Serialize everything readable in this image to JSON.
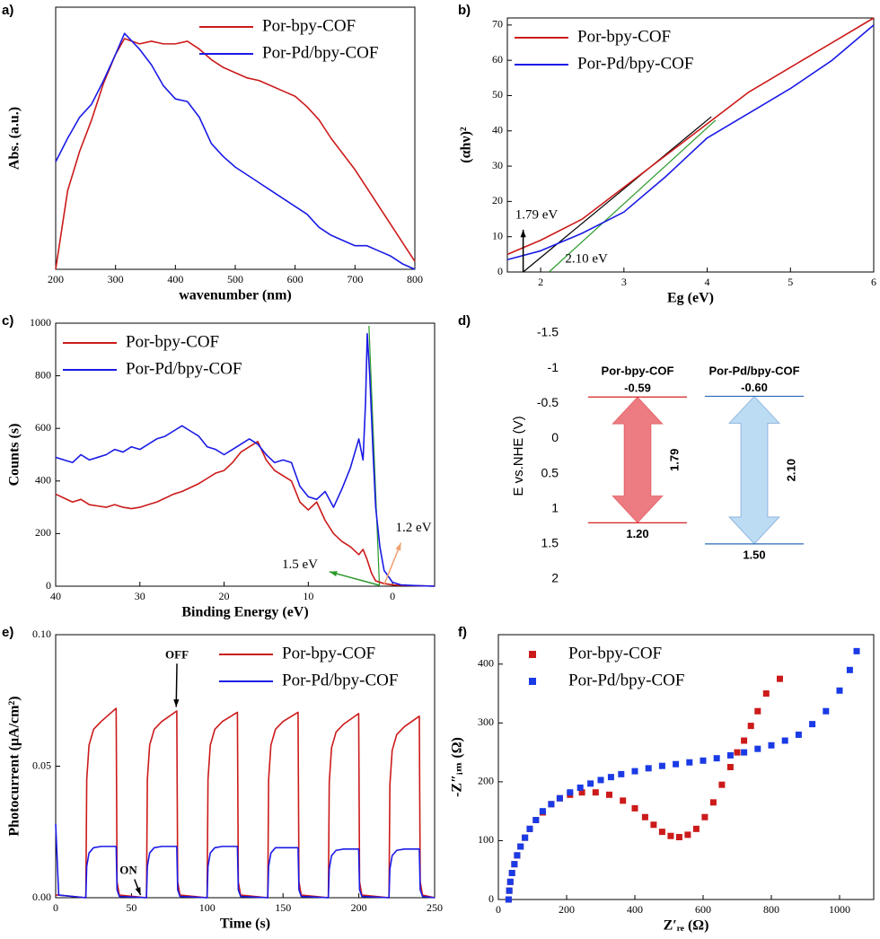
{
  "chart_data": [
    {
      "type": "line",
      "label": "a)",
      "xlabel": "wavenumber (nm)",
      "ylabel": "Abs. (a.u.)",
      "x": [
        200,
        220,
        240,
        260,
        280,
        300,
        315,
        340,
        360,
        380,
        400,
        420,
        440,
        460,
        480,
        500,
        520,
        540,
        560,
        580,
        600,
        620,
        640,
        660,
        680,
        700,
        720,
        740,
        760,
        780,
        800
      ],
      "series": [
        {
          "name": "Por-bpy-COF",
          "color": "#cc1a1a",
          "values": [
            0.0,
            0.3,
            0.45,
            0.57,
            0.71,
            0.82,
            0.88,
            0.86,
            0.87,
            0.86,
            0.86,
            0.87,
            0.84,
            0.8,
            0.77,
            0.75,
            0.73,
            0.72,
            0.7,
            0.68,
            0.66,
            0.62,
            0.57,
            0.5,
            0.44,
            0.38,
            0.31,
            0.24,
            0.17,
            0.1,
            0.03
          ]
        },
        {
          "name": "Por-Pd/bpy-COF",
          "color": "#1a1ae6",
          "values": [
            0.41,
            0.5,
            0.58,
            0.63,
            0.72,
            0.82,
            0.9,
            0.84,
            0.78,
            0.7,
            0.65,
            0.64,
            0.58,
            0.48,
            0.43,
            0.39,
            0.36,
            0.33,
            0.3,
            0.27,
            0.24,
            0.21,
            0.16,
            0.13,
            0.11,
            0.09,
            0.09,
            0.07,
            0.05,
            0.02,
            0.0
          ]
        }
      ],
      "xlim": [
        200,
        800
      ],
      "xticks": [
        200,
        300,
        400,
        500,
        600,
        700,
        800
      ],
      "ylim": [
        0,
        1
      ],
      "legend": "upper right"
    },
    {
      "type": "line",
      "label": "b)",
      "xlabel": "Eg (eV)",
      "ylabel": "(αhν)²",
      "x": [
        1.6,
        2,
        2.5,
        3,
        3.5,
        4,
        4.5,
        5,
        5.5,
        6
      ],
      "series": [
        {
          "name": "Por-bpy-COF",
          "color": "#cc1a1a",
          "values": [
            5,
            9,
            15,
            24,
            33,
            42,
            51,
            58,
            65,
            72
          ]
        },
        {
          "name": "Por-Pd/bpy-COF",
          "color": "#1a1ae6",
          "values": [
            3.5,
            6,
            11,
            17,
            27,
            38,
            45,
            52,
            60,
            70
          ]
        }
      ],
      "tangents": [
        {
          "color": "#000000",
          "x": [
            1.79,
            4.05
          ],
          "y": [
            0,
            44
          ]
        },
        {
          "color": "#2a9a2a",
          "x": [
            2.1,
            4.1
          ],
          "y": [
            0,
            43
          ]
        }
      ],
      "annotations": [
        {
          "text": "1.79 eV",
          "x": 1.95,
          "y": 16,
          "arrow": [
            1.79,
            0,
            1.79,
            12
          ],
          "arrow_color": "#000000"
        },
        {
          "text": "2.10 eV",
          "x": 2.55,
          "y": 3.5
        }
      ],
      "xlim": [
        1.6,
        6
      ],
      "xticks": [
        2,
        3,
        4,
        5,
        6
      ],
      "ylim": [
        0,
        72
      ],
      "yticks": [
        0,
        10,
        20,
        30,
        40,
        50,
        60,
        70
      ],
      "legend": "upper left"
    },
    {
      "type": "line",
      "label": "c)",
      "xlabel": "Binding Energy (eV)",
      "ylabel": "Counts (s)",
      "series": [
        {
          "name": "Por-bpy-COF",
          "color": "#cc1a1a",
          "x": [
            40,
            39,
            38,
            37,
            36,
            35,
            34,
            33,
            32,
            31,
            30,
            29,
            28,
            27,
            26,
            25,
            24,
            23,
            22,
            21,
            20,
            19,
            18,
            17,
            16,
            15,
            14,
            13,
            12,
            11,
            10,
            9,
            8,
            7,
            6,
            5,
            4,
            3.5,
            3,
            2.5,
            2,
            1,
            0,
            -1,
            -3,
            -5
          ],
          "values": [
            350,
            335,
            320,
            330,
            310,
            305,
            300,
            310,
            300,
            295,
            300,
            310,
            320,
            335,
            350,
            360,
            375,
            390,
            410,
            430,
            440,
            470,
            510,
            530,
            550,
            480,
            440,
            420,
            400,
            320,
            290,
            320,
            250,
            200,
            170,
            150,
            120,
            140,
            100,
            50,
            20,
            10,
            5,
            3,
            2,
            0
          ]
        },
        {
          "name": "Por-Pd/bpy-COF",
          "color": "#1a1ae6",
          "x": [
            40,
            39,
            38,
            37,
            36,
            35,
            34,
            33,
            32,
            31,
            30,
            29,
            28,
            27,
            26,
            25,
            24,
            23,
            22,
            21,
            20,
            19,
            18,
            17,
            16,
            15,
            14,
            13,
            12,
            11,
            10,
            9,
            8,
            7,
            6,
            5,
            4,
            3.5,
            3.2,
            3,
            2.7,
            2.3,
            2,
            1.5,
            1,
            0,
            -1,
            -3,
            -5
          ],
          "values": [
            490,
            480,
            470,
            500,
            480,
            490,
            500,
            520,
            510,
            530,
            520,
            540,
            560,
            570,
            590,
            610,
            590,
            570,
            530,
            520,
            500,
            520,
            540,
            560,
            540,
            500,
            470,
            480,
            470,
            380,
            340,
            330,
            360,
            300,
            370,
            450,
            560,
            480,
            700,
            960,
            800,
            500,
            300,
            150,
            60,
            15,
            5,
            2,
            0
          ]
        }
      ],
      "tangents": [
        {
          "color": "#2a9a2a",
          "x": [
            2.8,
            1.55
          ],
          "y": [
            990,
            0
          ]
        }
      ],
      "annotations": [
        {
          "text": "1.5 eV",
          "x": 11,
          "y": 80,
          "arrow": [
            1.5,
            3,
            7.5,
            55
          ],
          "arrow_color": "#2a9a2a"
        },
        {
          "text": "1.2 eV",
          "x": -2.5,
          "y": 220,
          "arrow": [
            1,
            5,
            -1,
            165
          ],
          "arrow_color": "#f0a070"
        }
      ],
      "xlim": [
        40,
        -5
      ],
      "xticks": [
        40,
        30,
        20,
        10,
        0
      ],
      "ylim": [
        0,
        1000
      ],
      "yticks": [
        0,
        200,
        400,
        600,
        800,
        1000
      ],
      "legend": "upper left"
    },
    {
      "type": "band",
      "label": "d)",
      "ylabel": "E vs.NHE (V)",
      "ylim": [
        2,
        -1.5
      ],
      "yticks": [
        -1.5,
        -1,
        -0.5,
        0,
        0.5,
        1,
        1.5,
        2
      ],
      "series": [
        {
          "name": "Por-bpy-COF",
          "color": "#d42020",
          "fill": "#ec7b82",
          "values": [
            -0.59,
            1.2
          ],
          "value_labels": [
            "-0.59",
            "1.20"
          ],
          "gap": 1.79
        },
        {
          "name": "Por-Pd/bpy-COF",
          "color": "#2a6ab8",
          "fill": "#bcdcf3",
          "values": [
            -0.6,
            1.5
          ],
          "value_labels": [
            "-0.60",
            "1.50"
          ],
          "gap": 2.1,
          "gap_label": "2.10"
        }
      ]
    },
    {
      "type": "line",
      "label": "e)",
      "xlabel": "Time (s)",
      "ylabel": "Photocurrent (μA/cm²)",
      "x": [
        0,
        2,
        19.9,
        20.5,
        22,
        25,
        30,
        39.9,
        40.5,
        42,
        59.9,
        60.5,
        62,
        65,
        70,
        79.9,
        80.5,
        82,
        99.9,
        100.5,
        102,
        105,
        110,
        119.9,
        120.5,
        122,
        139.9,
        140.5,
        142,
        145,
        150,
        159.9,
        160.5,
        162,
        179.9,
        180.5,
        182,
        185,
        190,
        199.9,
        200.5,
        202,
        219.9,
        220.5,
        222,
        225,
        230,
        239.9,
        240.5,
        242,
        250
      ],
      "series": [
        {
          "name": "Por-bpy-COF",
          "color": "#cc1a1a",
          "values": [
            0.001,
            0.001,
            0,
            0.045,
            0.058,
            0.064,
            0.067,
            0.072,
            0.006,
            0.001,
            0,
            0.045,
            0.058,
            0.064,
            0.067,
            0.071,
            0.006,
            0.001,
            0,
            0.045,
            0.058,
            0.064,
            0.067,
            0.0705,
            0.006,
            0.001,
            0,
            0.045,
            0.058,
            0.064,
            0.067,
            0.0705,
            0.006,
            0.001,
            0,
            0.044,
            0.057,
            0.063,
            0.066,
            0.07,
            0.006,
            0.001,
            0,
            0.043,
            0.056,
            0.062,
            0.065,
            0.069,
            0.006,
            0.001,
            0
          ]
        },
        {
          "name": "Por-Pd/bpy-COF",
          "color": "#1a1ae6",
          "values": [
            0.028,
            0.001,
            0,
            0.012,
            0.017,
            0.019,
            0.0195,
            0.0195,
            0.003,
            0.0005,
            0,
            0.012,
            0.017,
            0.019,
            0.0195,
            0.0195,
            0.003,
            0.0005,
            0,
            0.012,
            0.017,
            0.019,
            0.0195,
            0.0195,
            0.003,
            0.0005,
            0,
            0.012,
            0.017,
            0.019,
            0.019,
            0.019,
            0.003,
            0.0005,
            0,
            0.011,
            0.016,
            0.018,
            0.0185,
            0.0185,
            0.003,
            0.0005,
            0,
            0.011,
            0.016,
            0.018,
            0.0185,
            0.0185,
            0.003,
            0.0005,
            0
          ]
        }
      ],
      "annotations": [
        {
          "text": "OFF",
          "x": 80,
          "y": 0.092,
          "arrow": [
            80,
            0.089,
            79.5,
            0.0725
          ],
          "arrow_color": "#000000"
        },
        {
          "text": "ON",
          "x": 48,
          "y": 0.01,
          "arrow": [
            52,
            0.007,
            56,
            0.001
          ],
          "arrow_color": "#000000"
        }
      ],
      "xlim": [
        0,
        250
      ],
      "xticks": [
        0,
        50,
        100,
        150,
        200,
        250
      ],
      "ylim": [
        0,
        0.1
      ],
      "yticks": [
        {
          "value": 0,
          "label": "0.00"
        },
        {
          "value": 0.05,
          "label": "0.05"
        },
        {
          "value": 0.1,
          "label": "0.10"
        }
      ],
      "legend": "upper right"
    },
    {
      "type": "scatter",
      "label": "f)",
      "xlabel": "Z′ᵣₑ (Ω)",
      "ylabel": "-Z″ᵢₘ (Ω)",
      "series": [
        {
          "name": "Por-bpy-COF",
          "color": "#cc1a1a",
          "x": [
            30,
            32,
            35,
            40,
            47,
            55,
            65,
            78,
            92,
            110,
            130,
            155,
            180,
            210,
            245,
            285,
            325,
            365,
            400,
            430,
            455,
            480,
            505,
            530,
            555,
            580,
            605,
            630,
            655,
            680,
            700,
            720,
            740,
            760,
            785,
            825
          ],
          "values": [
            0,
            15,
            30,
            45,
            60,
            75,
            90,
            105,
            120,
            135,
            148,
            162,
            172,
            178,
            182,
            182,
            178,
            168,
            155,
            140,
            127,
            115,
            108,
            106,
            110,
            120,
            140,
            165,
            195,
            225,
            250,
            270,
            295,
            320,
            350,
            375
          ]
        },
        {
          "name": "Por-Pd/bpy-COF",
          "color": "#1a3ae6",
          "x": [
            30,
            32,
            35,
            40,
            47,
            55,
            65,
            78,
            92,
            110,
            130,
            155,
            180,
            210,
            240,
            270,
            300,
            330,
            360,
            400,
            440,
            480,
            520,
            560,
            600,
            640,
            680,
            720,
            760,
            800,
            840,
            880,
            920,
            960,
            1000,
            1030,
            1050
          ],
          "values": [
            0,
            15,
            30,
            45,
            60,
            75,
            90,
            105,
            120,
            135,
            150,
            162,
            172,
            182,
            190,
            197,
            203,
            208,
            213,
            218,
            223,
            227,
            230,
            233,
            236,
            240,
            245,
            250,
            256,
            262,
            270,
            280,
            298,
            320,
            355,
            390,
            422
          ]
        }
      ],
      "xlim": [
        0,
        1100
      ],
      "xticks": [
        0,
        200,
        400,
        600,
        800,
        1000
      ],
      "ylim": [
        0,
        450
      ],
      "yticks": [
        0,
        100,
        200,
        300,
        400
      ],
      "legend": "upper left"
    }
  ]
}
